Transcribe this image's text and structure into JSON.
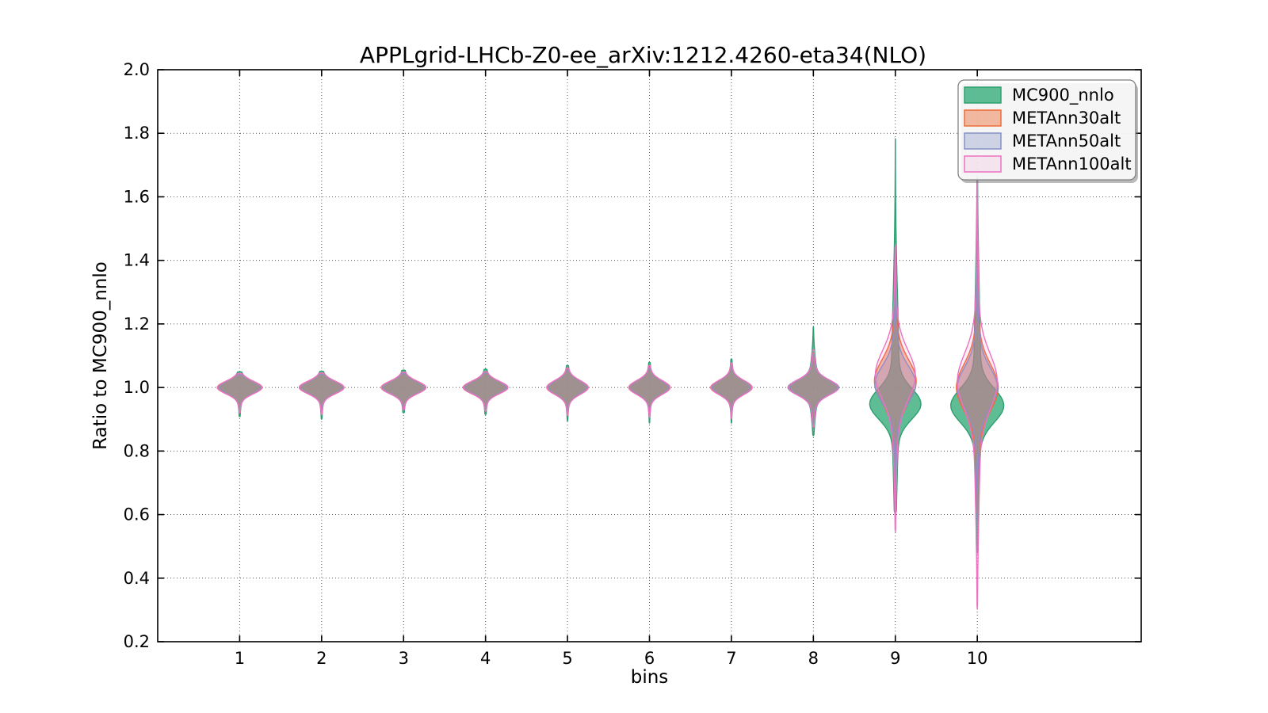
{
  "chart_data": {
    "type": "violin",
    "title": "APPLgrid-LHCb-Z0-ee_arXiv:1212.4260-eta34(NLO)",
    "xlabel": "bins",
    "ylabel": "Ratio to MC900_nnlo",
    "xlim": [
      0,
      12
    ],
    "ylim": [
      0.2,
      2.0
    ],
    "xticks": [
      1,
      2,
      3,
      4,
      5,
      6,
      7,
      8,
      9,
      10
    ],
    "xticklabels": [
      "1",
      "2",
      "3",
      "4",
      "5",
      "6",
      "7",
      "8",
      "9",
      "10"
    ],
    "yticks": [
      0.2,
      0.4,
      0.6,
      0.8,
      1.0,
      1.2,
      1.4,
      1.6,
      1.8,
      2.0
    ],
    "yticklabels": [
      "0.2",
      "0.4",
      "0.6",
      "0.8",
      "1.0",
      "1.2",
      "1.4",
      "1.6",
      "1.8",
      "2.0"
    ],
    "grid": {
      "style": "dotted",
      "color": "#555555"
    },
    "legend": {
      "position": "upper right"
    },
    "series": [
      {
        "name": "MC900_nnlo",
        "fill": "#43b184",
        "edge": "#2f9e71",
        "fill_opacity": 0.85,
        "violins": [
          {
            "bin": 1,
            "center": 1.0,
            "sigma": 0.0185,
            "halfwidth": 0.235,
            "tail_halfwidth": 0.03,
            "tail_sigma": 0.05,
            "min": 0.908,
            "max": 1.05
          },
          {
            "bin": 2,
            "center": 1.0,
            "sigma": 0.0185,
            "halfwidth": 0.235,
            "tail_halfwidth": 0.03,
            "tail_sigma": 0.05,
            "min": 0.9,
            "max": 1.052
          },
          {
            "bin": 3,
            "center": 1.0,
            "sigma": 0.0185,
            "halfwidth": 0.235,
            "tail_halfwidth": 0.03,
            "tail_sigma": 0.05,
            "min": 0.92,
            "max": 1.055
          },
          {
            "bin": 4,
            "center": 1.0,
            "sigma": 0.0185,
            "halfwidth": 0.235,
            "tail_halfwidth": 0.03,
            "tail_sigma": 0.05,
            "min": 0.915,
            "max": 1.058
          },
          {
            "bin": 5,
            "center": 1.0,
            "sigma": 0.02,
            "halfwidth": 0.215,
            "tail_halfwidth": 0.03,
            "tail_sigma": 0.05,
            "min": 0.895,
            "max": 1.07
          },
          {
            "bin": 6,
            "center": 1.0,
            "sigma": 0.02,
            "halfwidth": 0.215,
            "tail_halfwidth": 0.03,
            "tail_sigma": 0.05,
            "min": 0.888,
            "max": 1.08
          },
          {
            "bin": 7,
            "center": 1.0,
            "sigma": 0.02,
            "halfwidth": 0.215,
            "tail_halfwidth": 0.03,
            "tail_sigma": 0.05,
            "min": 0.888,
            "max": 1.09
          },
          {
            "bin": 8,
            "center": 1.0,
            "sigma": 0.022,
            "halfwidth": 0.26,
            "tail_halfwidth": 0.05,
            "tail_sigma": 0.075,
            "min": 0.848,
            "max": 1.192
          },
          {
            "bin": 9,
            "center": 0.948,
            "sigma": 0.047,
            "halfwidth": 0.27,
            "tail_halfwidth": 0.045,
            "tail_sigma": 0.26,
            "tail_center": 1.02,
            "min": 0.6,
            "max": 1.783
          },
          {
            "bin": 10,
            "center": 0.943,
            "sigma": 0.052,
            "halfwidth": 0.285,
            "tail_halfwidth": 0.04,
            "tail_sigma": 0.3,
            "tail_center": 1.0,
            "min": 0.48,
            "max": 1.664
          }
        ]
      },
      {
        "name": "METAnn30alt",
        "fill": "#ed6d38",
        "edge": "#ed6d38",
        "fill_opacity": 0.45,
        "violins": [
          {
            "bin": 1,
            "center": 1.0,
            "sigma": 0.019,
            "halfwidth": 0.245,
            "tail_halfwidth": 0.028,
            "tail_sigma": 0.04,
            "min": 0.932,
            "max": 1.042
          },
          {
            "bin": 2,
            "center": 1.0,
            "sigma": 0.019,
            "halfwidth": 0.245,
            "tail_halfwidth": 0.028,
            "tail_sigma": 0.04,
            "min": 0.928,
            "max": 1.044
          },
          {
            "bin": 3,
            "center": 1.0,
            "sigma": 0.019,
            "halfwidth": 0.245,
            "tail_halfwidth": 0.028,
            "tail_sigma": 0.04,
            "min": 0.938,
            "max": 1.046
          },
          {
            "bin": 4,
            "center": 1.0,
            "sigma": 0.019,
            "halfwidth": 0.245,
            "tail_halfwidth": 0.028,
            "tail_sigma": 0.04,
            "min": 0.934,
            "max": 1.048
          },
          {
            "bin": 5,
            "center": 1.0,
            "sigma": 0.021,
            "halfwidth": 0.225,
            "tail_halfwidth": 0.028,
            "tail_sigma": 0.04,
            "min": 0.922,
            "max": 1.058
          },
          {
            "bin": 6,
            "center": 1.0,
            "sigma": 0.021,
            "halfwidth": 0.225,
            "tail_halfwidth": 0.028,
            "tail_sigma": 0.04,
            "min": 0.916,
            "max": 1.066
          },
          {
            "bin": 7,
            "center": 1.0,
            "sigma": 0.021,
            "halfwidth": 0.225,
            "tail_halfwidth": 0.028,
            "tail_sigma": 0.04,
            "min": 0.914,
            "max": 1.074
          },
          {
            "bin": 8,
            "center": 1.0,
            "sigma": 0.023,
            "halfwidth": 0.265,
            "tail_halfwidth": 0.04,
            "tail_sigma": 0.06,
            "min": 0.88,
            "max": 1.108
          },
          {
            "bin": 9,
            "center": 1.02,
            "sigma": 0.065,
            "halfwidth": 0.21,
            "tail_halfwidth": 0.045,
            "tail_sigma": 0.14,
            "min": 0.7,
            "max": 1.33
          },
          {
            "bin": 10,
            "center": 1.0,
            "sigma": 0.07,
            "halfwidth": 0.21,
            "tail_halfwidth": 0.045,
            "tail_sigma": 0.16,
            "min": 0.6,
            "max": 1.35
          }
        ]
      },
      {
        "name": "METAnn50alt",
        "fill": "#8491c7",
        "edge": "#8491c7",
        "fill_opacity": 0.35,
        "violins": [
          {
            "bin": 1,
            "center": 1.0,
            "sigma": 0.019,
            "halfwidth": 0.23,
            "tail_halfwidth": 0.028,
            "tail_sigma": 0.04,
            "min": 0.934,
            "max": 1.04
          },
          {
            "bin": 2,
            "center": 1.0,
            "sigma": 0.019,
            "halfwidth": 0.23,
            "tail_halfwidth": 0.028,
            "tail_sigma": 0.04,
            "min": 0.93,
            "max": 1.042
          },
          {
            "bin": 3,
            "center": 1.0,
            "sigma": 0.019,
            "halfwidth": 0.23,
            "tail_halfwidth": 0.028,
            "tail_sigma": 0.04,
            "min": 0.94,
            "max": 1.044
          },
          {
            "bin": 4,
            "center": 1.0,
            "sigma": 0.019,
            "halfwidth": 0.23,
            "tail_halfwidth": 0.028,
            "tail_sigma": 0.04,
            "min": 0.936,
            "max": 1.046
          },
          {
            "bin": 5,
            "center": 1.0,
            "sigma": 0.021,
            "halfwidth": 0.21,
            "tail_halfwidth": 0.028,
            "tail_sigma": 0.04,
            "min": 0.924,
            "max": 1.056
          },
          {
            "bin": 6,
            "center": 1.0,
            "sigma": 0.021,
            "halfwidth": 0.21,
            "tail_halfwidth": 0.028,
            "tail_sigma": 0.04,
            "min": 0.918,
            "max": 1.064
          },
          {
            "bin": 7,
            "center": 1.0,
            "sigma": 0.021,
            "halfwidth": 0.21,
            "tail_halfwidth": 0.028,
            "tail_sigma": 0.04,
            "min": 0.916,
            "max": 1.072
          },
          {
            "bin": 8,
            "center": 1.0,
            "sigma": 0.023,
            "halfwidth": 0.25,
            "tail_halfwidth": 0.04,
            "tail_sigma": 0.06,
            "min": 0.882,
            "max": 1.104
          },
          {
            "bin": 9,
            "center": 1.01,
            "sigma": 0.055,
            "halfwidth": 0.2,
            "tail_halfwidth": 0.05,
            "tail_sigma": 0.12,
            "min": 0.7,
            "max": 1.36
          },
          {
            "bin": 10,
            "center": 1.0,
            "sigma": 0.06,
            "halfwidth": 0.195,
            "tail_halfwidth": 0.05,
            "tail_sigma": 0.14,
            "min": 0.58,
            "max": 1.37
          }
        ]
      },
      {
        "name": "METAnn100alt",
        "fill": "#ed72c2",
        "edge": "#ed72c2",
        "fill_opacity": 0.13,
        "violins": [
          {
            "bin": 1,
            "center": 1.0,
            "sigma": 0.019,
            "halfwidth": 0.24,
            "tail_halfwidth": 0.03,
            "tail_sigma": 0.045,
            "min": 0.92,
            "max": 1.044
          },
          {
            "bin": 2,
            "center": 1.0,
            "sigma": 0.019,
            "halfwidth": 0.24,
            "tail_halfwidth": 0.03,
            "tail_sigma": 0.045,
            "min": 0.915,
            "max": 1.046
          },
          {
            "bin": 3,
            "center": 1.0,
            "sigma": 0.019,
            "halfwidth": 0.24,
            "tail_halfwidth": 0.03,
            "tail_sigma": 0.045,
            "min": 0.93,
            "max": 1.048
          },
          {
            "bin": 4,
            "center": 1.0,
            "sigma": 0.019,
            "halfwidth": 0.24,
            "tail_halfwidth": 0.03,
            "tail_sigma": 0.045,
            "min": 0.926,
            "max": 1.05
          },
          {
            "bin": 5,
            "center": 1.0,
            "sigma": 0.021,
            "halfwidth": 0.22,
            "tail_halfwidth": 0.03,
            "tail_sigma": 0.045,
            "min": 0.912,
            "max": 1.062
          },
          {
            "bin": 6,
            "center": 1.0,
            "sigma": 0.021,
            "halfwidth": 0.22,
            "tail_halfwidth": 0.03,
            "tail_sigma": 0.045,
            "min": 0.906,
            "max": 1.07
          },
          {
            "bin": 7,
            "center": 1.0,
            "sigma": 0.021,
            "halfwidth": 0.22,
            "tail_halfwidth": 0.03,
            "tail_sigma": 0.045,
            "min": 0.902,
            "max": 1.078
          },
          {
            "bin": 8,
            "center": 1.0,
            "sigma": 0.023,
            "halfwidth": 0.26,
            "tail_halfwidth": 0.045,
            "tail_sigma": 0.065,
            "min": 0.875,
            "max": 1.12
          },
          {
            "bin": 9,
            "center": 1.04,
            "sigma": 0.075,
            "halfwidth": 0.205,
            "tail_halfwidth": 0.04,
            "tail_sigma": 0.2,
            "tail_center": 1.0,
            "min": 0.545,
            "max": 1.45
          },
          {
            "bin": 10,
            "center": 1.02,
            "sigma": 0.085,
            "halfwidth": 0.205,
            "tail_halfwidth": 0.04,
            "tail_sigma": 0.28,
            "tail_center": 0.95,
            "min": 0.302,
            "max": 1.655
          }
        ]
      }
    ]
  }
}
